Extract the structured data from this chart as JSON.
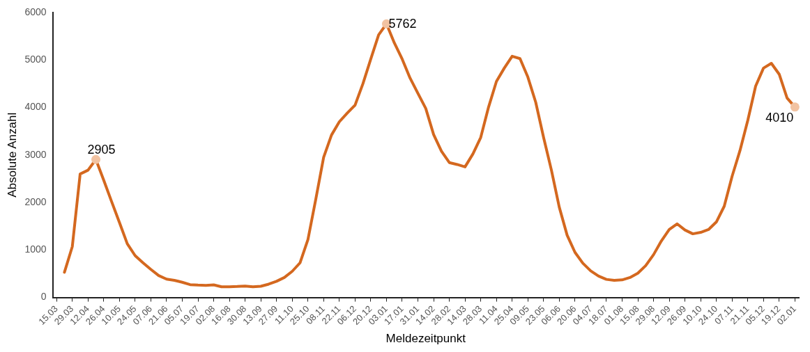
{
  "chart_data": {
    "type": "line",
    "xlabel": "Meldezeitpunkt",
    "ylabel": "Absolute Anzahl",
    "categories": [
      "15.03",
      null,
      "29.03",
      null,
      "12.04",
      null,
      "26.04",
      null,
      "10.05",
      null,
      "24.05",
      null,
      "07.06",
      null,
      "21.06",
      null,
      "05.07",
      null,
      "19.07",
      null,
      "02.08",
      null,
      "16.08",
      null,
      "30.08",
      null,
      "13.09",
      null,
      "27.09",
      null,
      "11.10",
      null,
      "25.10",
      null,
      "08.11",
      null,
      "22.11",
      null,
      "06.12",
      null,
      "20.12",
      null,
      "03.01",
      null,
      "17.01",
      null,
      "31.01",
      null,
      "14.02",
      null,
      "28.02",
      null,
      "14.03",
      null,
      "28.03",
      null,
      "11.04",
      null,
      "25.04",
      null,
      "09.05",
      null,
      "23.05",
      null,
      "06.06",
      null,
      "20.06",
      null,
      "04.07",
      null,
      "18.07",
      null,
      "01.08",
      null,
      "15.08",
      null,
      "29.08",
      null,
      "12.09",
      null,
      "26.09",
      null,
      "10.10",
      null,
      "24.10",
      null,
      "07.11",
      null,
      "21.11",
      null,
      "05.12",
      null,
      "19.12",
      null,
      "02.01"
    ],
    "series": [
      {
        "color": "#d4681f",
        "marker": "none",
        "values": [
          null,
          530,
          1070,
          2600,
          2680,
          2905,
          2470,
          2020,
          1580,
          1130,
          880,
          730,
          590,
          460,
          385,
          360,
          320,
          270,
          260,
          255,
          265,
          225,
          225,
          230,
          240,
          225,
          235,
          280,
          340,
          420,
          550,
          730,
          1220,
          2070,
          2950,
          3420,
          3700,
          3880,
          4050,
          4500,
          5020,
          5530,
          5762,
          5360,
          5020,
          4620,
          4300,
          3980,
          3430,
          3080,
          2840,
          2800,
          2750,
          3020,
          3370,
          4010,
          4550,
          4830,
          5080,
          5030,
          4640,
          4110,
          3370,
          2680,
          1900,
          1310,
          950,
          720,
          560,
          450,
          380,
          360,
          370,
          420,
          510,
          670,
          900,
          1190,
          1430,
          1550,
          1420,
          1340,
          1370,
          1430,
          1590,
          1920,
          2550,
          3090,
          3730,
          4450,
          4830,
          4930,
          4700,
          4200,
          4010
        ]
      },
      {
        "type": "scatter",
        "marker": "circle",
        "color": "#f2c3a2",
        "values": [
          null,
          null,
          null,
          null,
          null,
          2905,
          null,
          null,
          null,
          null,
          null,
          null,
          null,
          null,
          null,
          null,
          null,
          null,
          null,
          null,
          null,
          null,
          null,
          null,
          null,
          null,
          null,
          null,
          null,
          null,
          null,
          null,
          null,
          null,
          null,
          null,
          null,
          null,
          null,
          null,
          null,
          null,
          5762,
          null,
          null,
          null,
          null,
          null,
          null,
          null,
          null,
          null,
          null,
          null,
          null,
          null,
          null,
          null,
          null,
          null,
          null,
          null,
          null,
          null,
          null,
          null,
          null,
          null,
          null,
          null,
          null,
          null,
          null,
          null,
          null,
          null,
          null,
          null,
          null,
          null,
          null,
          null,
          null,
          null,
          null,
          null,
          null,
          null,
          null,
          null,
          null,
          null,
          null,
          null,
          4010
        ],
        "value_labels": [
          null,
          null,
          null,
          null,
          null,
          "2905",
          null,
          null,
          null,
          null,
          null,
          null,
          null,
          null,
          null,
          null,
          null,
          null,
          null,
          null,
          null,
          null,
          null,
          null,
          null,
          null,
          null,
          null,
          null,
          null,
          null,
          null,
          null,
          null,
          null,
          null,
          null,
          null,
          null,
          null,
          null,
          null,
          "5762",
          null,
          null,
          null,
          null,
          null,
          null,
          null,
          null,
          null,
          null,
          null,
          null,
          null,
          null,
          null,
          null,
          null,
          null,
          null,
          null,
          null,
          null,
          null,
          null,
          null,
          null,
          null,
          null,
          null,
          null,
          null,
          null,
          null,
          null,
          null,
          null,
          null,
          null,
          null,
          null,
          null,
          null,
          null,
          null,
          null,
          null,
          null,
          null,
          null,
          null,
          null,
          "4010"
        ]
      }
    ],
    "ylim": [
      0,
      6000
    ],
    "yticks": [
      0,
      1000,
      2000,
      3000,
      4000,
      5000,
      6000
    ],
    "grid": false,
    "legend": false,
    "line_style": "solid"
  }
}
